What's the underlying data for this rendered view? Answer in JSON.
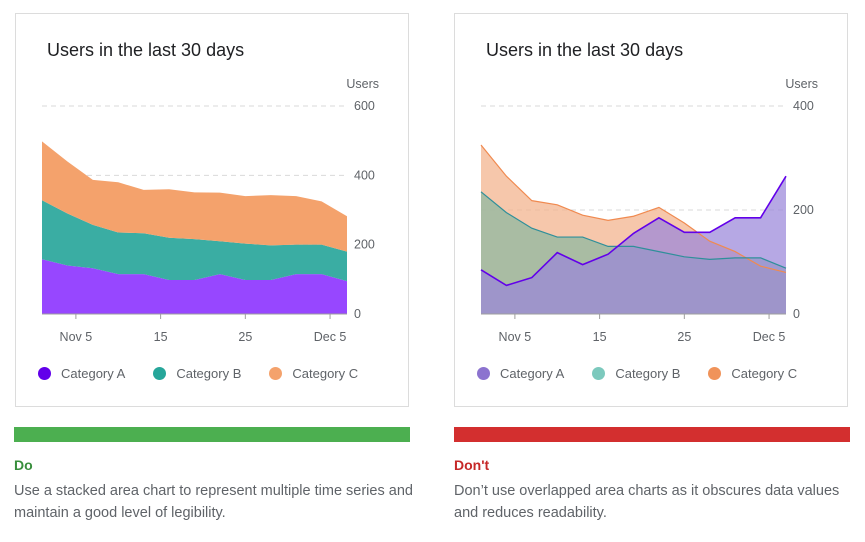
{
  "colors": {
    "do_bar": "#4caf50",
    "dont_bar": "#d32f2f",
    "do_text": "#388e3c",
    "dont_text": "#c62828",
    "stacked_a": "#9747ff",
    "stacked_b": "#3aada3",
    "stacked_c": "#f4a26c",
    "legend_do_a": "#6200ea",
    "legend_do_b": "#26a69a",
    "legend_do_c": "#f4a26c",
    "over_a_fill": "#9a86d9",
    "over_a_line": "#6200ea",
    "over_b_fill": "#8bb8a0",
    "over_b_line": "#2f8f9a",
    "over_c_fill": "#f2b28a",
    "over_c_line": "#f08a50",
    "legend_dont_a": "#8c73cf",
    "legend_dont_b": "#7cc9bd",
    "legend_dont_c": "#f0935a"
  },
  "do_panel": {
    "verdict": "Do",
    "description": "Use a stacked area chart to represent multiple time series and maintain a good level of legibility."
  },
  "dont_panel": {
    "verdict": "Don't",
    "description": "Don’t use overlapped area charts as it obscures data values and reduces readability."
  },
  "chart_data": [
    {
      "type": "area",
      "stacked": true,
      "title": "Users in the last 30 days",
      "ylabel": "Users",
      "xlabel": "",
      "ylim": [
        0,
        600
      ],
      "y_ticks": [
        "0",
        "200",
        "400",
        "600"
      ],
      "grid": true,
      "y_axis_side": "right",
      "x": [
        1,
        4,
        7,
        10,
        13,
        16,
        19,
        22,
        25,
        28,
        31,
        34,
        37
      ],
      "x_range": [
        1,
        37
      ],
      "x_ticks": [
        {
          "value": 5,
          "label": "Nov 5"
        },
        {
          "value": 15,
          "label": "15"
        },
        {
          "value": 25,
          "label": "25"
        },
        {
          "value": 35,
          "label": "Dec 5"
        }
      ],
      "legend_position": "bottom",
      "series": [
        {
          "name": "Category A",
          "values": [
            158,
            140,
            132,
            115,
            115,
            98,
            98,
            115,
            98,
            98,
            115,
            115,
            95
          ]
        },
        {
          "name": "Category B",
          "values": [
            170,
            150,
            125,
            120,
            118,
            122,
            118,
            95,
            105,
            100,
            85,
            85,
            85
          ]
        },
        {
          "name": "Category C",
          "values": [
            170,
            150,
            130,
            145,
            125,
            140,
            135,
            140,
            137,
            145,
            140,
            125,
            102
          ]
        }
      ]
    },
    {
      "type": "area",
      "stacked": false,
      "title": "Users in the last 30 days",
      "ylabel": "Users",
      "xlabel": "",
      "ylim": [
        0,
        400
      ],
      "y_ticks": [
        "0",
        "200",
        "400"
      ],
      "grid": true,
      "y_axis_side": "right",
      "x": [
        1,
        4,
        7,
        10,
        13,
        16,
        19,
        22,
        25,
        28,
        31,
        34,
        37
      ],
      "x_range": [
        1,
        37
      ],
      "x_ticks": [
        {
          "value": 5,
          "label": "Nov 5"
        },
        {
          "value": 15,
          "label": "15"
        },
        {
          "value": 25,
          "label": "25"
        },
        {
          "value": 35,
          "label": "Dec 5"
        }
      ],
      "legend_position": "bottom",
      "series": [
        {
          "name": "Category A",
          "values": [
            85,
            55,
            70,
            118,
            95,
            115,
            155,
            185,
            157,
            157,
            185,
            185,
            265
          ]
        },
        {
          "name": "Category B",
          "values": [
            235,
            195,
            165,
            148,
            148,
            130,
            130,
            120,
            110,
            105,
            108,
            108,
            88
          ]
        },
        {
          "name": "Category C",
          "values": [
            325,
            265,
            218,
            210,
            190,
            180,
            188,
            205,
            175,
            140,
            120,
            92,
            80
          ]
        }
      ]
    }
  ]
}
